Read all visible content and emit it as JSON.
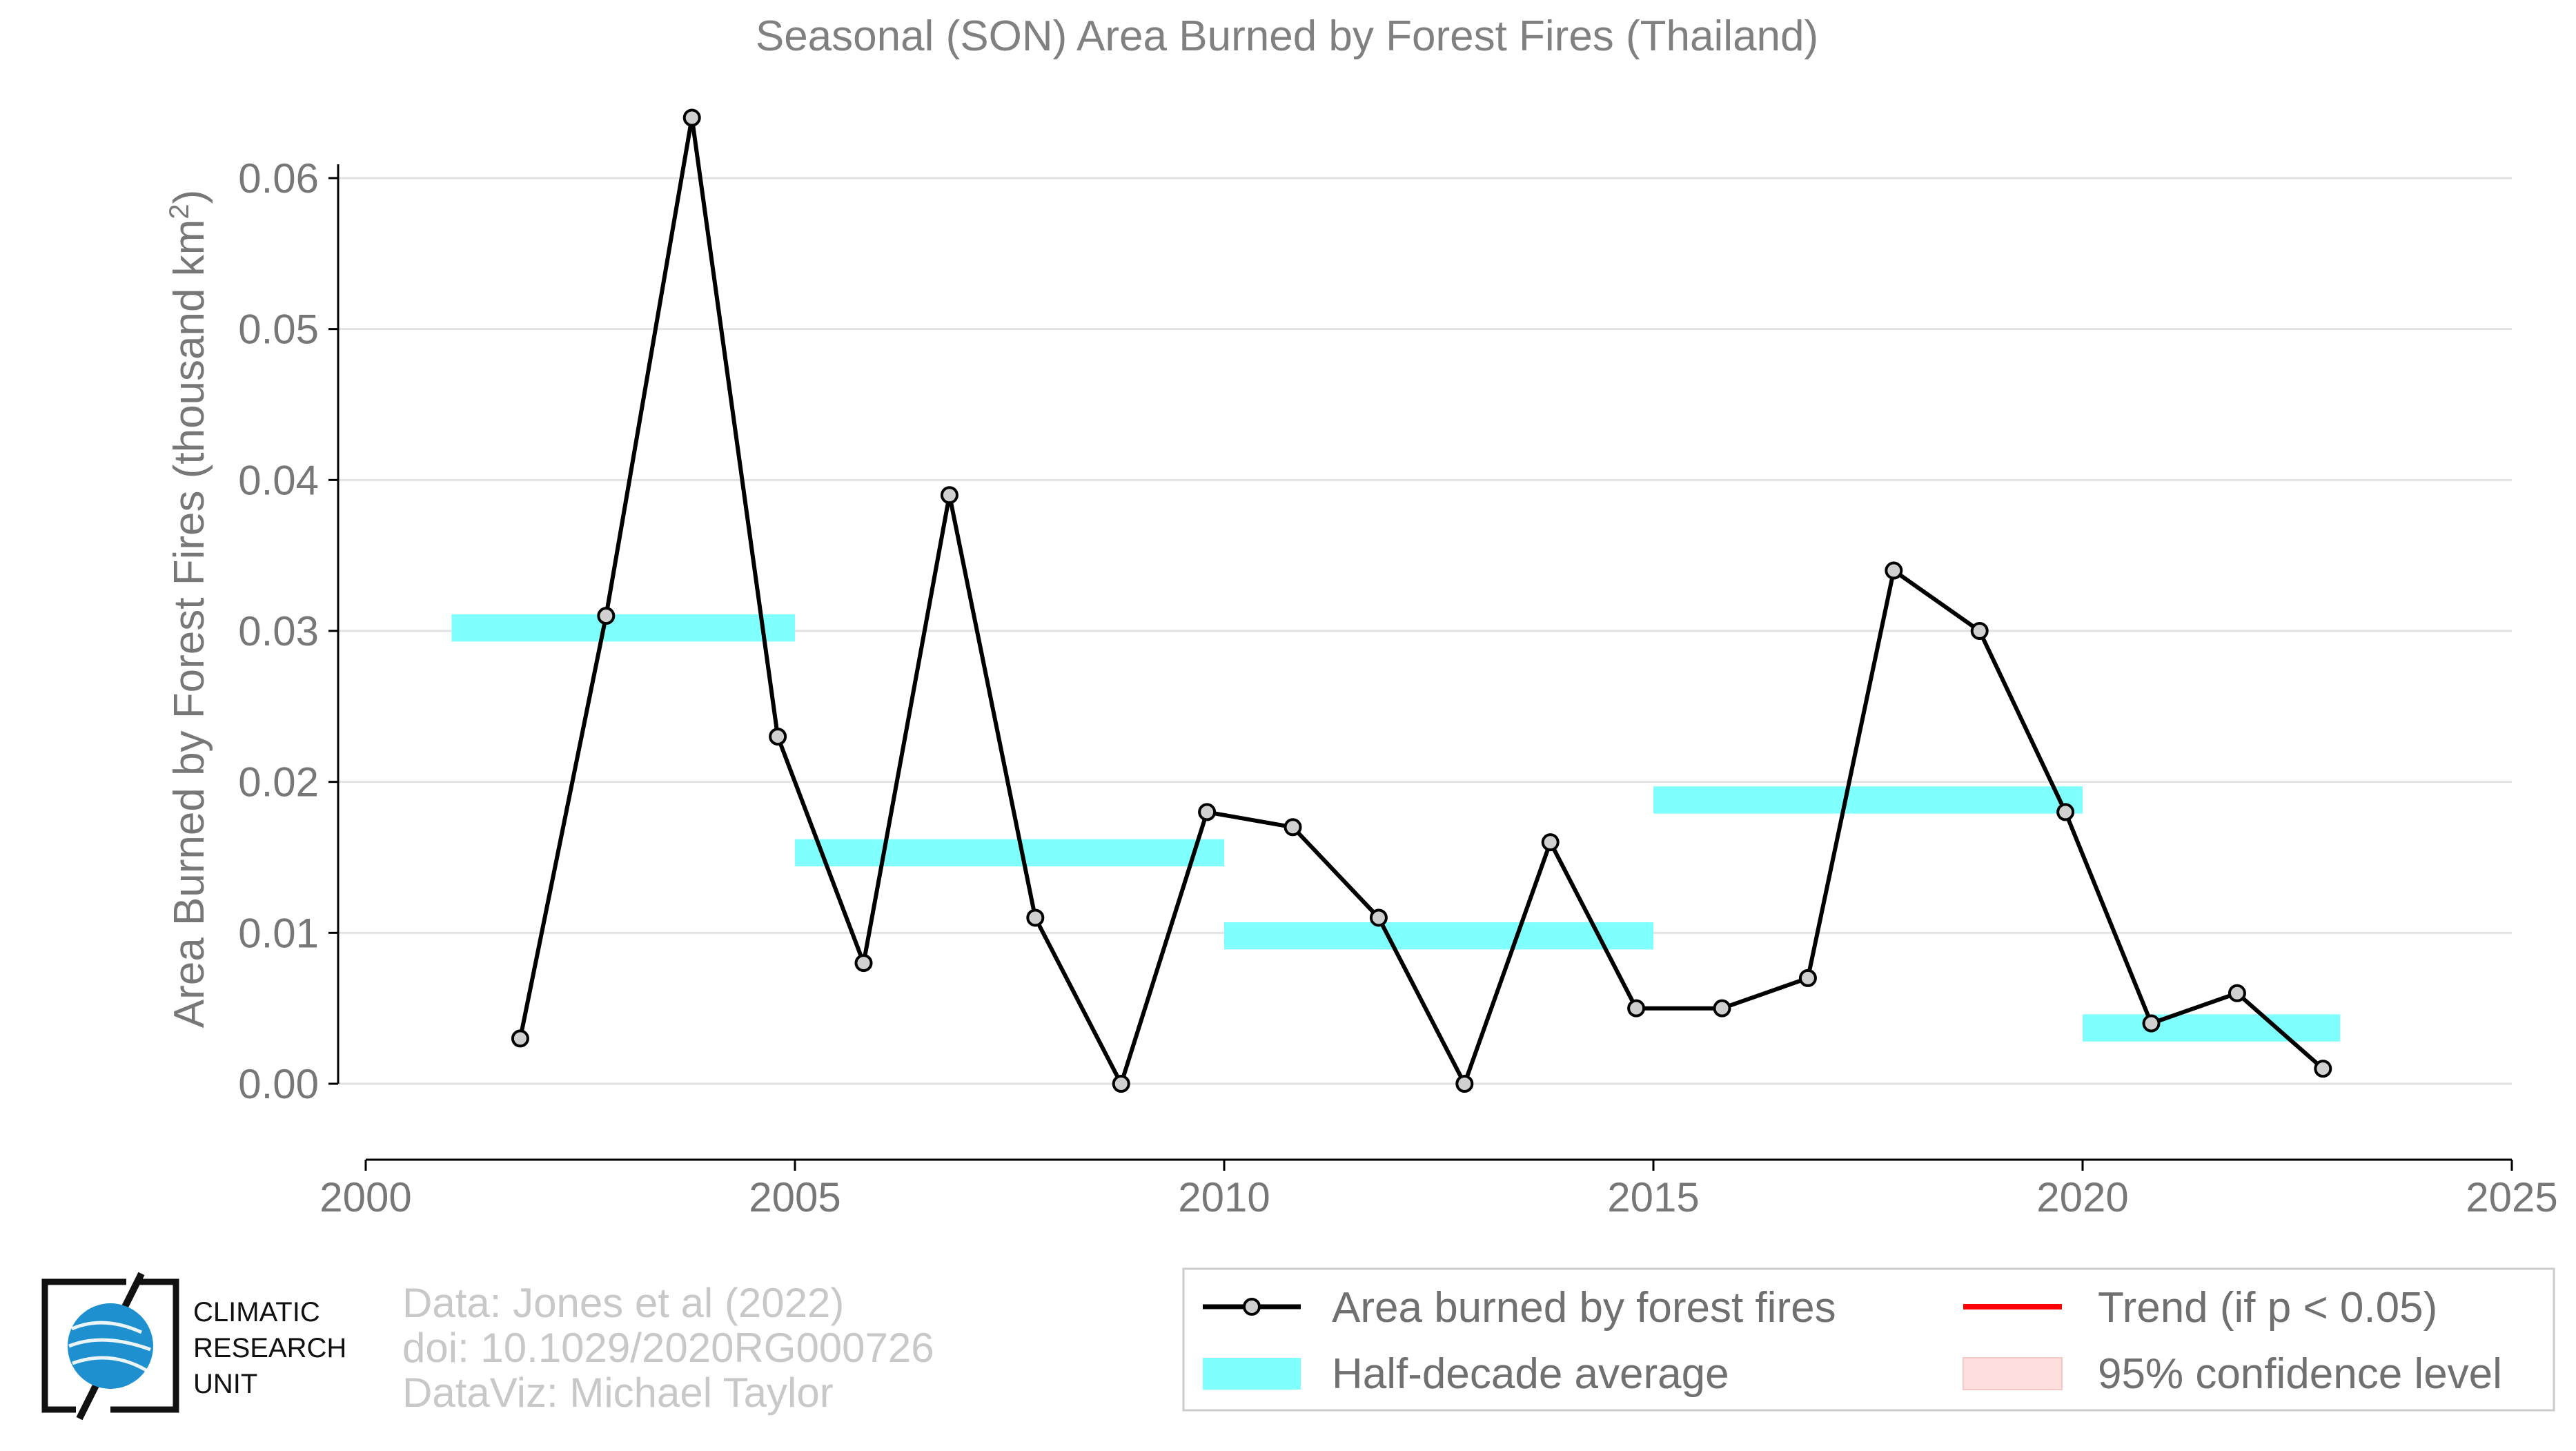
{
  "chart_data": {
    "type": "line",
    "title": "Seasonal (SON) Area Burned by Forest Fires (Thailand)",
    "ylabel": "Area Burned by Forest Fires (thousand km",
    "ylabel_sup": "2",
    "ylabel_end": ")",
    "xlabel": "",
    "xlim": [
      2000,
      2025
    ],
    "ylim": [
      -0.005,
      0.065
    ],
    "xticks": [
      2000,
      2005,
      2010,
      2015,
      2020,
      2025
    ],
    "xtick_labels": [
      "2000",
      "2005",
      "2010",
      "2015",
      "2020",
      "2025"
    ],
    "yticks": [
      0.0,
      0.01,
      0.02,
      0.03,
      0.04,
      0.05,
      0.06
    ],
    "ytick_labels": [
      "0.00",
      "0.01",
      "0.02",
      "0.03",
      "0.04",
      "0.05",
      "0.06"
    ],
    "grid": true,
    "series": [
      {
        "name": "Area burned by forest fires",
        "color": "#000000",
        "marker_fill": "#d0d0d0",
        "x": [
          2001.8,
          2002.8,
          2003.8,
          2004.8,
          2005.8,
          2006.8,
          2007.8,
          2008.8,
          2009.8,
          2010.8,
          2011.8,
          2012.8,
          2013.8,
          2014.8,
          2015.8,
          2016.8,
          2017.8,
          2018.8,
          2019.8,
          2020.8,
          2021.8,
          2022.8
        ],
        "values": [
          0.003,
          0.031,
          0.064,
          0.023,
          0.008,
          0.039,
          0.011,
          0.0,
          0.018,
          0.017,
          0.011,
          0.0,
          0.016,
          0.005,
          0.005,
          0.007,
          0.034,
          0.03,
          0.018,
          0.004,
          0.006,
          0.001
        ]
      }
    ],
    "half_decade_average": {
      "name": "Half-decade average",
      "color": "#80ffff",
      "segments": [
        {
          "x0": 2001,
          "x1": 2005,
          "value": 0.0302
        },
        {
          "x0": 2005,
          "x1": 2010,
          "value": 0.0153
        },
        {
          "x0": 2010,
          "x1": 2015,
          "value": 0.0098
        },
        {
          "x0": 2015,
          "x1": 2020,
          "value": 0.0188
        },
        {
          "x0": 2020,
          "x1": 2023,
          "value": 0.0037
        }
      ]
    },
    "legend": {
      "placement": "bottom-right",
      "items": [
        {
          "label": "Area burned by forest fires",
          "kind": "line-marker",
          "color": "#000000"
        },
        {
          "label": "Trend (if p < 0.05)",
          "kind": "line",
          "color": "#ff0000"
        },
        {
          "label": "Half-decade average",
          "kind": "patch",
          "color": "#80ffff"
        },
        {
          "label": "95% confidence level",
          "kind": "patch",
          "color": "#ffdede"
        }
      ]
    }
  },
  "credits": {
    "line1": "Data: Jones et al (2022)",
    "line2": "doi: 10.1029/2020RG000726",
    "line3": "DataViz: Michael Taylor"
  },
  "logo": {
    "line1": "CLIMATIC",
    "line2": "RESEARCH",
    "line3": "UNIT",
    "globe_color": "#1e90d0"
  }
}
